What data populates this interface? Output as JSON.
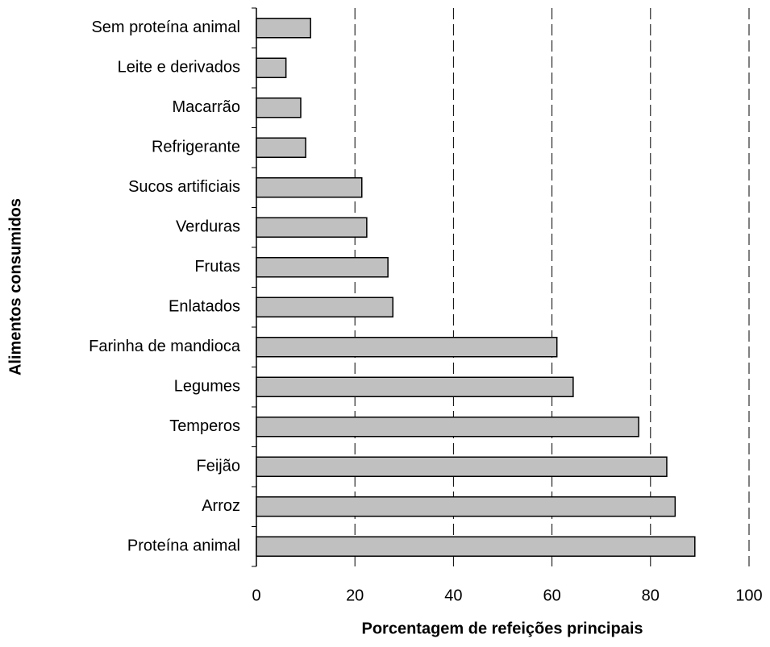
{
  "chart_data": {
    "type": "bar",
    "orientation": "horizontal",
    "xlabel": "Porcentagem de refeições principais",
    "ylabel": "Alimentos consumidos",
    "categories": [
      "Sem proteína animal",
      "Leite e derivados",
      "Macarrão",
      "Refrigerante",
      "Sucos artificiais",
      "Verduras",
      "Frutas",
      "Enlatados",
      "Farinha de mandioca",
      "Legumes",
      "Temperos",
      "Feijão",
      "Arroz",
      "Proteína animal"
    ],
    "values": [
      11,
      6,
      9,
      10,
      21.4,
      22.4,
      26.7,
      27.7,
      61,
      64.3,
      77.6,
      83.3,
      85,
      89
    ],
    "color": "#c0c0c0",
    "xlim": [
      0,
      100
    ],
    "xticks": [
      0,
      20,
      40,
      60,
      80,
      100
    ],
    "grid": true
  }
}
